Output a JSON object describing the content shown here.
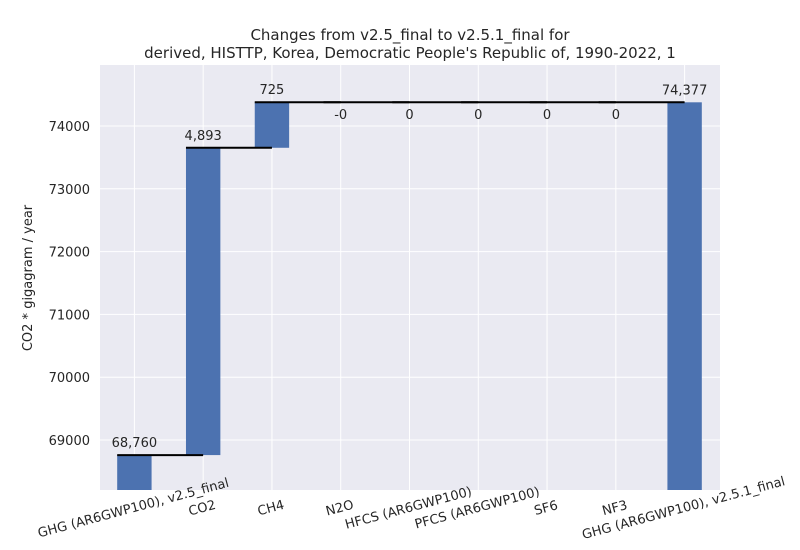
{
  "chart_data": {
    "type": "waterfall",
    "title": "Changes from v2.5_final to v2.5.1_final for\nderived, HISTTP, Korea, Democratic People's Republic of, 1990-2022, 1",
    "y_label": "CO2 * gigagram / year",
    "categories": [
      "GHG (AR6GWP100), v2.5_final",
      "CO2",
      "CH4",
      "N2O",
      "HFCS (AR6GWP100)",
      "PFCS (AR6GWP100)",
      "SF6",
      "NF3",
      "GHG (AR6GWP100), v2.5.1_final"
    ],
    "values": [
      68760,
      4893,
      725,
      0,
      0,
      0,
      0,
      0,
      74377
    ],
    "value_labels": [
      "68,760",
      "4,893",
      "725",
      "-0",
      "0",
      "0",
      "0",
      "0",
      "74,377"
    ],
    "color": "#4c72b0",
    "ylim": [
      68204,
      74971
    ],
    "yticks": [
      69000,
      70000,
      71000,
      72000,
      73000,
      74000
    ],
    "grid": true
  }
}
